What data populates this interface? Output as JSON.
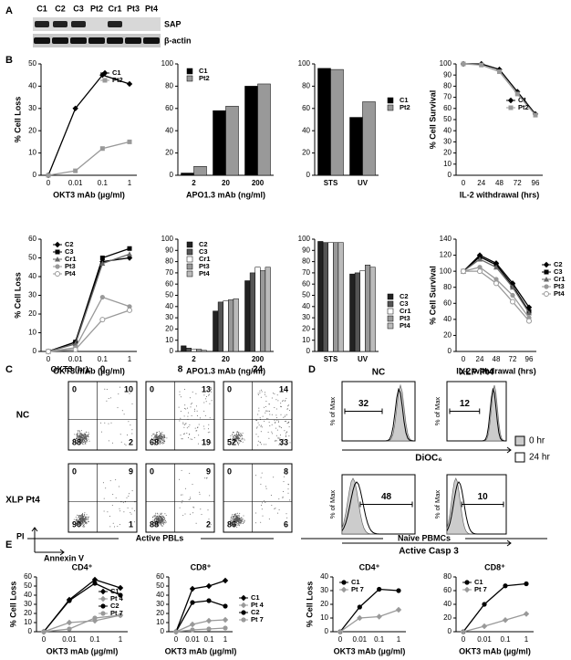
{
  "panels": [
    "A",
    "B",
    "C",
    "D",
    "E"
  ],
  "blot": {
    "lanes": [
      "C1",
      "C2",
      "C3",
      "Pt2",
      "Cr1",
      "Pt3",
      "Pt4"
    ],
    "bands": [
      "SAP",
      "β-actin"
    ]
  },
  "chart_data": [
    {
      "type": "line",
      "ylabel": "% Cell Loss",
      "xlabel": "OKT3 mAb (µg/ml)",
      "categories": [
        "0",
        "0.01",
        "0.1",
        "1"
      ],
      "ylim": [
        0,
        50
      ],
      "yticks": [
        0,
        10,
        20,
        30,
        40,
        50
      ],
      "series": [
        {
          "name": "C1",
          "color": "#000000",
          "marker": "diamond",
          "values": [
            0,
            30,
            45,
            41
          ]
        },
        {
          "name": "Pt2",
          "color": "#999999",
          "marker": "square",
          "values": [
            0,
            2,
            12,
            15
          ]
        }
      ]
    },
    {
      "type": "bar",
      "xlabel": "APO1.3 mAb (ng/ml)",
      "categories": [
        "2",
        "20",
        "200"
      ],
      "ylim": [
        0,
        100
      ],
      "yticks": [
        0,
        20,
        40,
        60,
        80,
        100
      ],
      "series": [
        {
          "name": "C1",
          "color": "#000000",
          "values": [
            2,
            58,
            80
          ]
        },
        {
          "name": "Pt2",
          "color": "#999999",
          "values": [
            8,
            62,
            82
          ]
        }
      ]
    },
    {
      "type": "bar",
      "categories": [
        "STS",
        "UV"
      ],
      "ylim": [
        0,
        100
      ],
      "yticks": [
        0,
        20,
        40,
        60,
        80,
        100
      ],
      "series": [
        {
          "name": "C1",
          "color": "#000000",
          "values": [
            96,
            52
          ]
        },
        {
          "name": "Pt2",
          "color": "#999999",
          "values": [
            95,
            66
          ]
        }
      ]
    },
    {
      "type": "line",
      "ylabel": "% Cell Survival",
      "xlabel": "IL-2 withdrawal (hrs)",
      "categories": [
        "0",
        "24",
        "48",
        "72",
        "96"
      ],
      "ylim": [
        0,
        100
      ],
      "yticks": [
        0,
        10,
        20,
        30,
        40,
        50,
        60,
        70,
        80,
        90,
        100
      ],
      "series": [
        {
          "name": "C1",
          "color": "#000000",
          "marker": "diamond",
          "values": [
            100,
            100,
            95,
            75,
            55
          ]
        },
        {
          "name": "Pt2",
          "color": "#999999",
          "marker": "square",
          "values": [
            100,
            99,
            93,
            73,
            54
          ]
        }
      ]
    },
    {
      "type": "line",
      "ylabel": "% Cell Loss",
      "xlabel": "OKT3 mAb (µg/ml)",
      "categories": [
        "0",
        "0.01",
        "0.1",
        "1"
      ],
      "ylim": [
        0,
        60
      ],
      "yticks": [
        0,
        10,
        20,
        30,
        40,
        50,
        60
      ],
      "series": [
        {
          "name": "C2",
          "color": "#000000",
          "marker": "diamond",
          "values": [
            0,
            5,
            48,
            50
          ]
        },
        {
          "name": "C3",
          "color": "#000000",
          "marker": "square",
          "values": [
            0,
            5,
            50,
            55
          ]
        },
        {
          "name": "Cr1",
          "color": "#666666",
          "marker": "triangle",
          "values": [
            0,
            4,
            47,
            52
          ]
        },
        {
          "name": "Pt3",
          "color": "#999999",
          "marker": "circle",
          "values": [
            0,
            2,
            29,
            24
          ]
        },
        {
          "name": "Pt4",
          "color": "#999999",
          "marker": "open-circle",
          "values": [
            0,
            1,
            17,
            22
          ]
        }
      ]
    },
    {
      "type": "bar",
      "xlabel": "APO1.3 mAb (ng/ml)",
      "categories": [
        "2",
        "20",
        "200"
      ],
      "ylim": [
        0,
        100
      ],
      "yticks": [
        0,
        10,
        20,
        30,
        40,
        50,
        60,
        70,
        80,
        90,
        100
      ],
      "series": [
        {
          "name": "C2",
          "color": "#222222",
          "values": [
            5,
            36,
            63
          ]
        },
        {
          "name": "C3",
          "color": "#555555",
          "values": [
            3,
            44,
            70
          ]
        },
        {
          "name": "Cr1",
          "color": "#ffffff",
          "values": [
            2,
            45,
            75
          ]
        },
        {
          "name": "Pt3",
          "color": "#999999",
          "values": [
            2,
            46,
            72
          ]
        },
        {
          "name": "Pt4",
          "color": "#bbbbbb",
          "values": [
            1,
            47,
            75
          ]
        }
      ]
    },
    {
      "type": "bar",
      "categories": [
        "STS",
        "UV"
      ],
      "ylim": [
        0,
        100
      ],
      "yticks": [
        0,
        10,
        20,
        30,
        40,
        50,
        60,
        70,
        80,
        90,
        100
      ],
      "series": [
        {
          "name": "C2",
          "color": "#222222",
          "values": [
            98,
            69
          ]
        },
        {
          "name": "C3",
          "color": "#555555",
          "values": [
            97,
            70
          ]
        },
        {
          "name": "Cr1",
          "color": "#ffffff",
          "values": [
            97,
            72
          ]
        },
        {
          "name": "Pt3",
          "color": "#999999",
          "values": [
            97,
            77
          ]
        },
        {
          "name": "Pt4",
          "color": "#bbbbbb",
          "values": [
            97,
            75
          ]
        }
      ]
    },
    {
      "type": "line",
      "ylabel": "% Cell Survival",
      "xlabel": "IL-2 withdrawal (hrs)",
      "categories": [
        "0",
        "24",
        "48",
        "72",
        "96"
      ],
      "ylim": [
        0,
        140
      ],
      "yticks": [
        0,
        20,
        40,
        60,
        80,
        100,
        120,
        140
      ],
      "series": [
        {
          "name": "C2",
          "color": "#000000",
          "marker": "diamond",
          "values": [
            100,
            120,
            110,
            85,
            55
          ]
        },
        {
          "name": "C3",
          "color": "#000000",
          "marker": "square",
          "values": [
            100,
            118,
            108,
            82,
            50
          ]
        },
        {
          "name": "Cr1",
          "color": "#666666",
          "marker": "triangle",
          "values": [
            100,
            115,
            105,
            80,
            48
          ]
        },
        {
          "name": "Pt3",
          "color": "#999999",
          "marker": "circle",
          "values": [
            100,
            105,
            90,
            70,
            42
          ]
        },
        {
          "name": "Pt4",
          "color": "#999999",
          "marker": "open-circle",
          "values": [
            100,
            100,
            85,
            62,
            38
          ]
        }
      ]
    },
    {
      "type": "line",
      "title": "CD4⁺",
      "ylabel": "% Cell Loss",
      "xlabel": "OKT3 mAb (µg/ml)",
      "categories": [
        "0",
        "0.01",
        "0.1",
        "1"
      ],
      "ylim": [
        0,
        60
      ],
      "yticks": [
        0,
        10,
        20,
        30,
        40,
        50,
        60
      ],
      "series": [
        {
          "name": "C1",
          "color": "#000000",
          "marker": "diamond",
          "values": [
            0,
            35,
            57,
            48
          ]
        },
        {
          "name": "Pt 4",
          "color": "#999999",
          "marker": "diamond",
          "values": [
            0,
            10,
            12,
            18
          ]
        },
        {
          "name": "C2",
          "color": "#000000",
          "marker": "circle",
          "values": [
            0,
            34,
            53,
            40
          ]
        },
        {
          "name": "Pt 7",
          "color": "#999999",
          "marker": "circle",
          "values": [
            0,
            3,
            15,
            18
          ]
        }
      ]
    },
    {
      "type": "line",
      "title": "CD8⁺",
      "xlabel": "OKT3 mAb (µg/ml)",
      "categories": [
        "0",
        "0.01",
        "0.1",
        "1"
      ],
      "ylim": [
        0,
        60
      ],
      "yticks": [
        0,
        10,
        20,
        30,
        40,
        50,
        60
      ],
      "series": [
        {
          "name": "C1",
          "color": "#000000",
          "marker": "diamond",
          "values": [
            0,
            47,
            50,
            56
          ]
        },
        {
          "name": "Pt 4",
          "color": "#999999",
          "marker": "diamond",
          "values": [
            0,
            8,
            12,
            13
          ]
        },
        {
          "name": "C2",
          "color": "#000000",
          "marker": "circle",
          "values": [
            0,
            32,
            34,
            28
          ]
        },
        {
          "name": "Pt 7",
          "color": "#999999",
          "marker": "circle",
          "values": [
            0,
            2,
            3,
            4
          ]
        }
      ]
    },
    {
      "type": "line",
      "title": "CD4⁺",
      "ylabel": "% Cell Loss",
      "xlabel": "OKT3 mAb (µg/ml)",
      "categories": [
        "0",
        "0.01",
        "0.1",
        "1"
      ],
      "ylim": [
        0,
        40
      ],
      "yticks": [
        0,
        10,
        20,
        30,
        40
      ],
      "series": [
        {
          "name": "C1",
          "color": "#000000",
          "marker": "circle",
          "values": [
            0,
            18,
            31,
            30
          ]
        },
        {
          "name": "Pt 7",
          "color": "#999999",
          "marker": "diamond",
          "values": [
            0,
            10,
            11,
            16
          ]
        }
      ]
    },
    {
      "type": "line",
      "title": "CD8⁺",
      "xlabel": "OKT3 mAb (µg/ml)",
      "categories": [
        "0",
        "0.01",
        "0.1",
        "1"
      ],
      "ylim": [
        0,
        80
      ],
      "yticks": [
        0,
        20,
        40,
        60,
        80
      ],
      "series": [
        {
          "name": "C1",
          "color": "#000000",
          "marker": "circle",
          "values": [
            0,
            40,
            67,
            70
          ]
        },
        {
          "name": "Pt 7",
          "color": "#999999",
          "marker": "diamond",
          "values": [
            0,
            8,
            17,
            26
          ]
        }
      ]
    }
  ],
  "flow": {
    "time_label": "OKT3 (hr):",
    "times": [
      "0",
      "8",
      "24"
    ],
    "y_label": "PI",
    "x_label": "Annexin V",
    "rows": [
      {
        "name": "NC",
        "quadrants": [
          [
            0,
            10,
            88,
            2
          ],
          [
            0,
            13,
            68,
            19
          ],
          [
            0,
            14,
            52,
            33
          ]
        ]
      },
      {
        "name": "XLP Pt4",
        "quadrants": [
          [
            0,
            9,
            90,
            1
          ],
          [
            0,
            9,
            88,
            2
          ],
          [
            0,
            8,
            86,
            6
          ]
        ]
      }
    ]
  },
  "histograms": {
    "columns": [
      "NC",
      "XLP Pt4"
    ],
    "y_label": "% of Max",
    "legend": [
      "0 hr",
      "24 hr"
    ],
    "rows": [
      {
        "x_label": "DiOC₆",
        "gates": [
          32,
          12
        ]
      },
      {
        "x_label": "Active Casp 3",
        "gates": [
          48,
          10
        ]
      }
    ]
  },
  "groups": [
    "Active PBLs",
    "Naive PBMCs"
  ]
}
